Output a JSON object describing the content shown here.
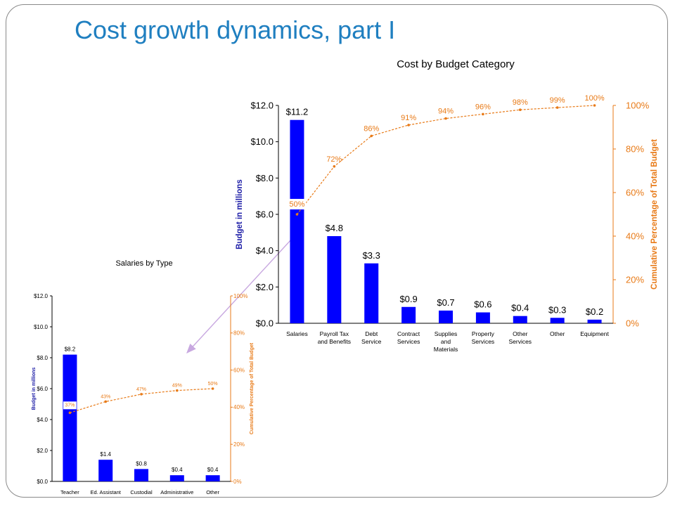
{
  "slide": {
    "title": "Cost growth dynamics, part I"
  },
  "colors": {
    "bar": "#0000ff",
    "cumulative": "#e87a17",
    "connector": "#c8a8e0",
    "title": "#1f7fc0",
    "axis_label": "#2020a8"
  },
  "chart_data": [
    {
      "id": "main",
      "type": "bar",
      "title": "Cost by Budget Category",
      "ylabel": "Budget in millions",
      "y2label": "Cumulative Percentage of Total Budget",
      "categories": [
        "Salaries",
        "Payroll Tax and Benefits",
        "Debt Service",
        "Contract Services",
        "Supplies and Materials",
        "Property Services",
        "Other Services",
        "Other",
        "Equipment"
      ],
      "category_lines": [
        [
          "Salaries"
        ],
        [
          "Payroll Tax",
          "and Benefits"
        ],
        [
          "Debt",
          "Service"
        ],
        [
          "Contract",
          "Services"
        ],
        [
          "Supplies",
          "and",
          "Materials"
        ],
        [
          "Property",
          "Services"
        ],
        [
          "Other",
          "Services"
        ],
        [
          "Other"
        ],
        [
          "Equipment"
        ]
      ],
      "values": [
        11.2,
        4.8,
        3.3,
        0.9,
        0.7,
        0.6,
        0.4,
        0.3,
        0.2
      ],
      "value_labels": [
        "$11.2",
        "$4.8",
        "$3.3",
        "$0.9",
        "$0.7",
        "$0.6",
        "$0.4",
        "$0.3",
        "$0.2"
      ],
      "cumulative": [
        50,
        72,
        86,
        91,
        94,
        96,
        98,
        99,
        100
      ],
      "cumulative_labels": [
        "50%",
        "72%",
        "86%",
        "91%",
        "94%",
        "96%",
        "98%",
        "99%",
        "100%"
      ],
      "ylim": [
        0,
        12
      ],
      "yticks": [
        "$0.0",
        "$2.0",
        "$4.0",
        "$6.0",
        "$8.0",
        "$10.0",
        "$12.0"
      ],
      "y2lim": [
        0,
        100
      ],
      "y2ticks": [
        "0%",
        "20%",
        "40%",
        "60%",
        "80%",
        "100%"
      ],
      "grid": false,
      "legend": "none"
    },
    {
      "id": "inset",
      "type": "bar",
      "title": "Salaries by Type",
      "ylabel": "Budget in millions",
      "y2label": "Cumulative Percentage of Total Budget",
      "categories": [
        "Teacher",
        "Ed. Assistant",
        "Custodial",
        "Administrative",
        "Other"
      ],
      "category_lines": [
        [
          "Teacher"
        ],
        [
          "Ed. Assistant"
        ],
        [
          "Custodial"
        ],
        [
          "Administrative"
        ],
        [
          "Other"
        ]
      ],
      "values": [
        8.2,
        1.4,
        0.8,
        0.4,
        0.4
      ],
      "value_labels": [
        "$8.2",
        "$1.4",
        "$0.8",
        "$0.4",
        "$0.4"
      ],
      "cumulative": [
        37,
        43,
        47,
        49,
        50
      ],
      "cumulative_labels": [
        "37%",
        "43%",
        "47%",
        "49%",
        "50%"
      ],
      "ylim": [
        0,
        12
      ],
      "yticks": [
        "$0.0",
        "$2.0",
        "$4.0",
        "$6.0",
        "$8.0",
        "$10.0",
        "$12.0"
      ],
      "y2lim": [
        0,
        100
      ],
      "y2ticks": [
        "0%",
        "20%",
        "40%",
        "60%",
        "80%",
        "100%"
      ],
      "grid": false,
      "legend": "none"
    }
  ]
}
